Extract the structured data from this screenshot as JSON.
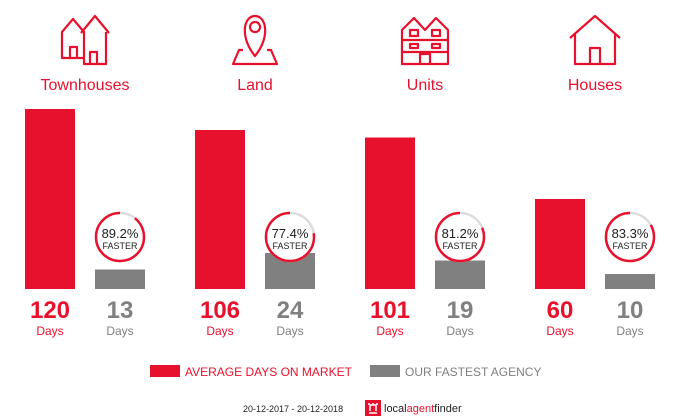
{
  "colors": {
    "red": "#e8112d",
    "gray": "#808080",
    "ring_bg": "#dddddd"
  },
  "chart_data": {
    "type": "bar",
    "categories": [
      "Townhouses",
      "Land",
      "Units",
      "Houses"
    ],
    "icons": [
      "townhouses-icon",
      "land-pin-icon",
      "units-icon",
      "house-icon"
    ],
    "series": [
      {
        "name": "AVERAGE DAYS ON MARKET",
        "values": [
          120,
          106,
          101,
          60
        ]
      },
      {
        "name": "OUR FASTEST AGENCY",
        "values": [
          13,
          24,
          19,
          10
        ]
      }
    ],
    "faster_pct": [
      "89.2%",
      "77.4%",
      "81.2%",
      "83.3%"
    ],
    "faster_values": [
      89.2,
      77.4,
      81.2,
      83.3
    ],
    "faster_label": "FASTER",
    "unit_label": "Days",
    "ylim": [
      0,
      120
    ]
  },
  "footer": {
    "date_range": "20-12-2017 - 20-12-2018",
    "brand_local": "local",
    "brand_agent": "agent",
    "brand_finder": "finder"
  }
}
